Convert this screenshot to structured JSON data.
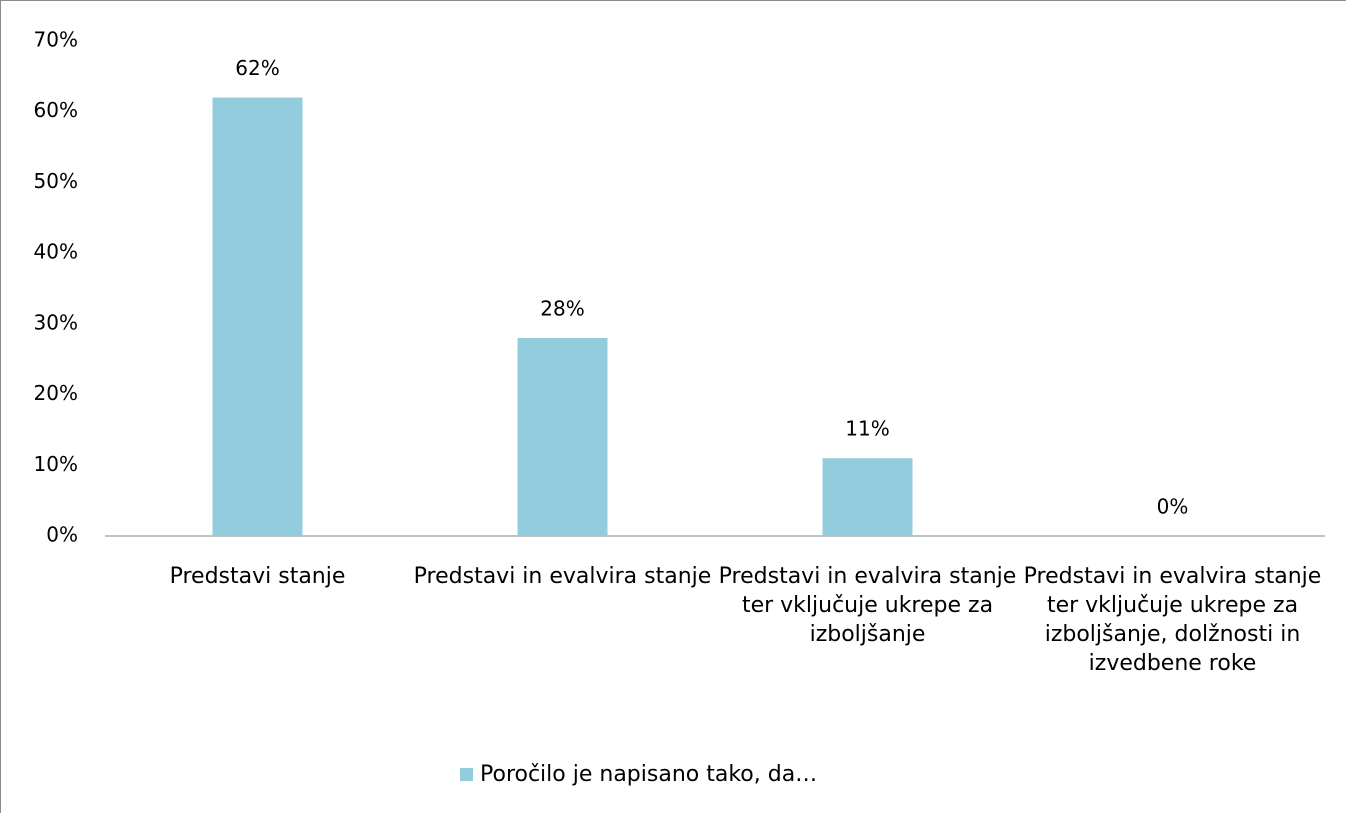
{
  "chart_data": {
    "type": "bar",
    "categories": [
      "Predstavi stanje",
      "Predstavi in evalvira stanje",
      "Predstavi in evalvira stanje ter vključuje ukrepe za izboljšanje",
      "Predstavi in evalvira stanje ter vključuje ukrepe za izboljšanje, dolžnosti in izvedbene roke"
    ],
    "series": [
      {
        "name": "Poročilo je napisano tako, da…",
        "color": "#93cddd",
        "values": [
          62,
          28,
          11,
          0
        ],
        "value_labels": [
          "62%",
          "28%",
          "11%",
          "0%"
        ]
      }
    ],
    "ylim": [
      0,
      70
    ],
    "yticks": [
      {
        "value": 0,
        "label": "0%"
      },
      {
        "value": 10,
        "label": "10%"
      },
      {
        "value": 20,
        "label": "20%"
      },
      {
        "value": 30,
        "label": "30%"
      },
      {
        "value": 40,
        "label": "40%"
      },
      {
        "value": 50,
        "label": "50%"
      },
      {
        "value": 60,
        "label": "60%"
      },
      {
        "value": 70,
        "label": "70%"
      }
    ],
    "legend": "bottom"
  }
}
